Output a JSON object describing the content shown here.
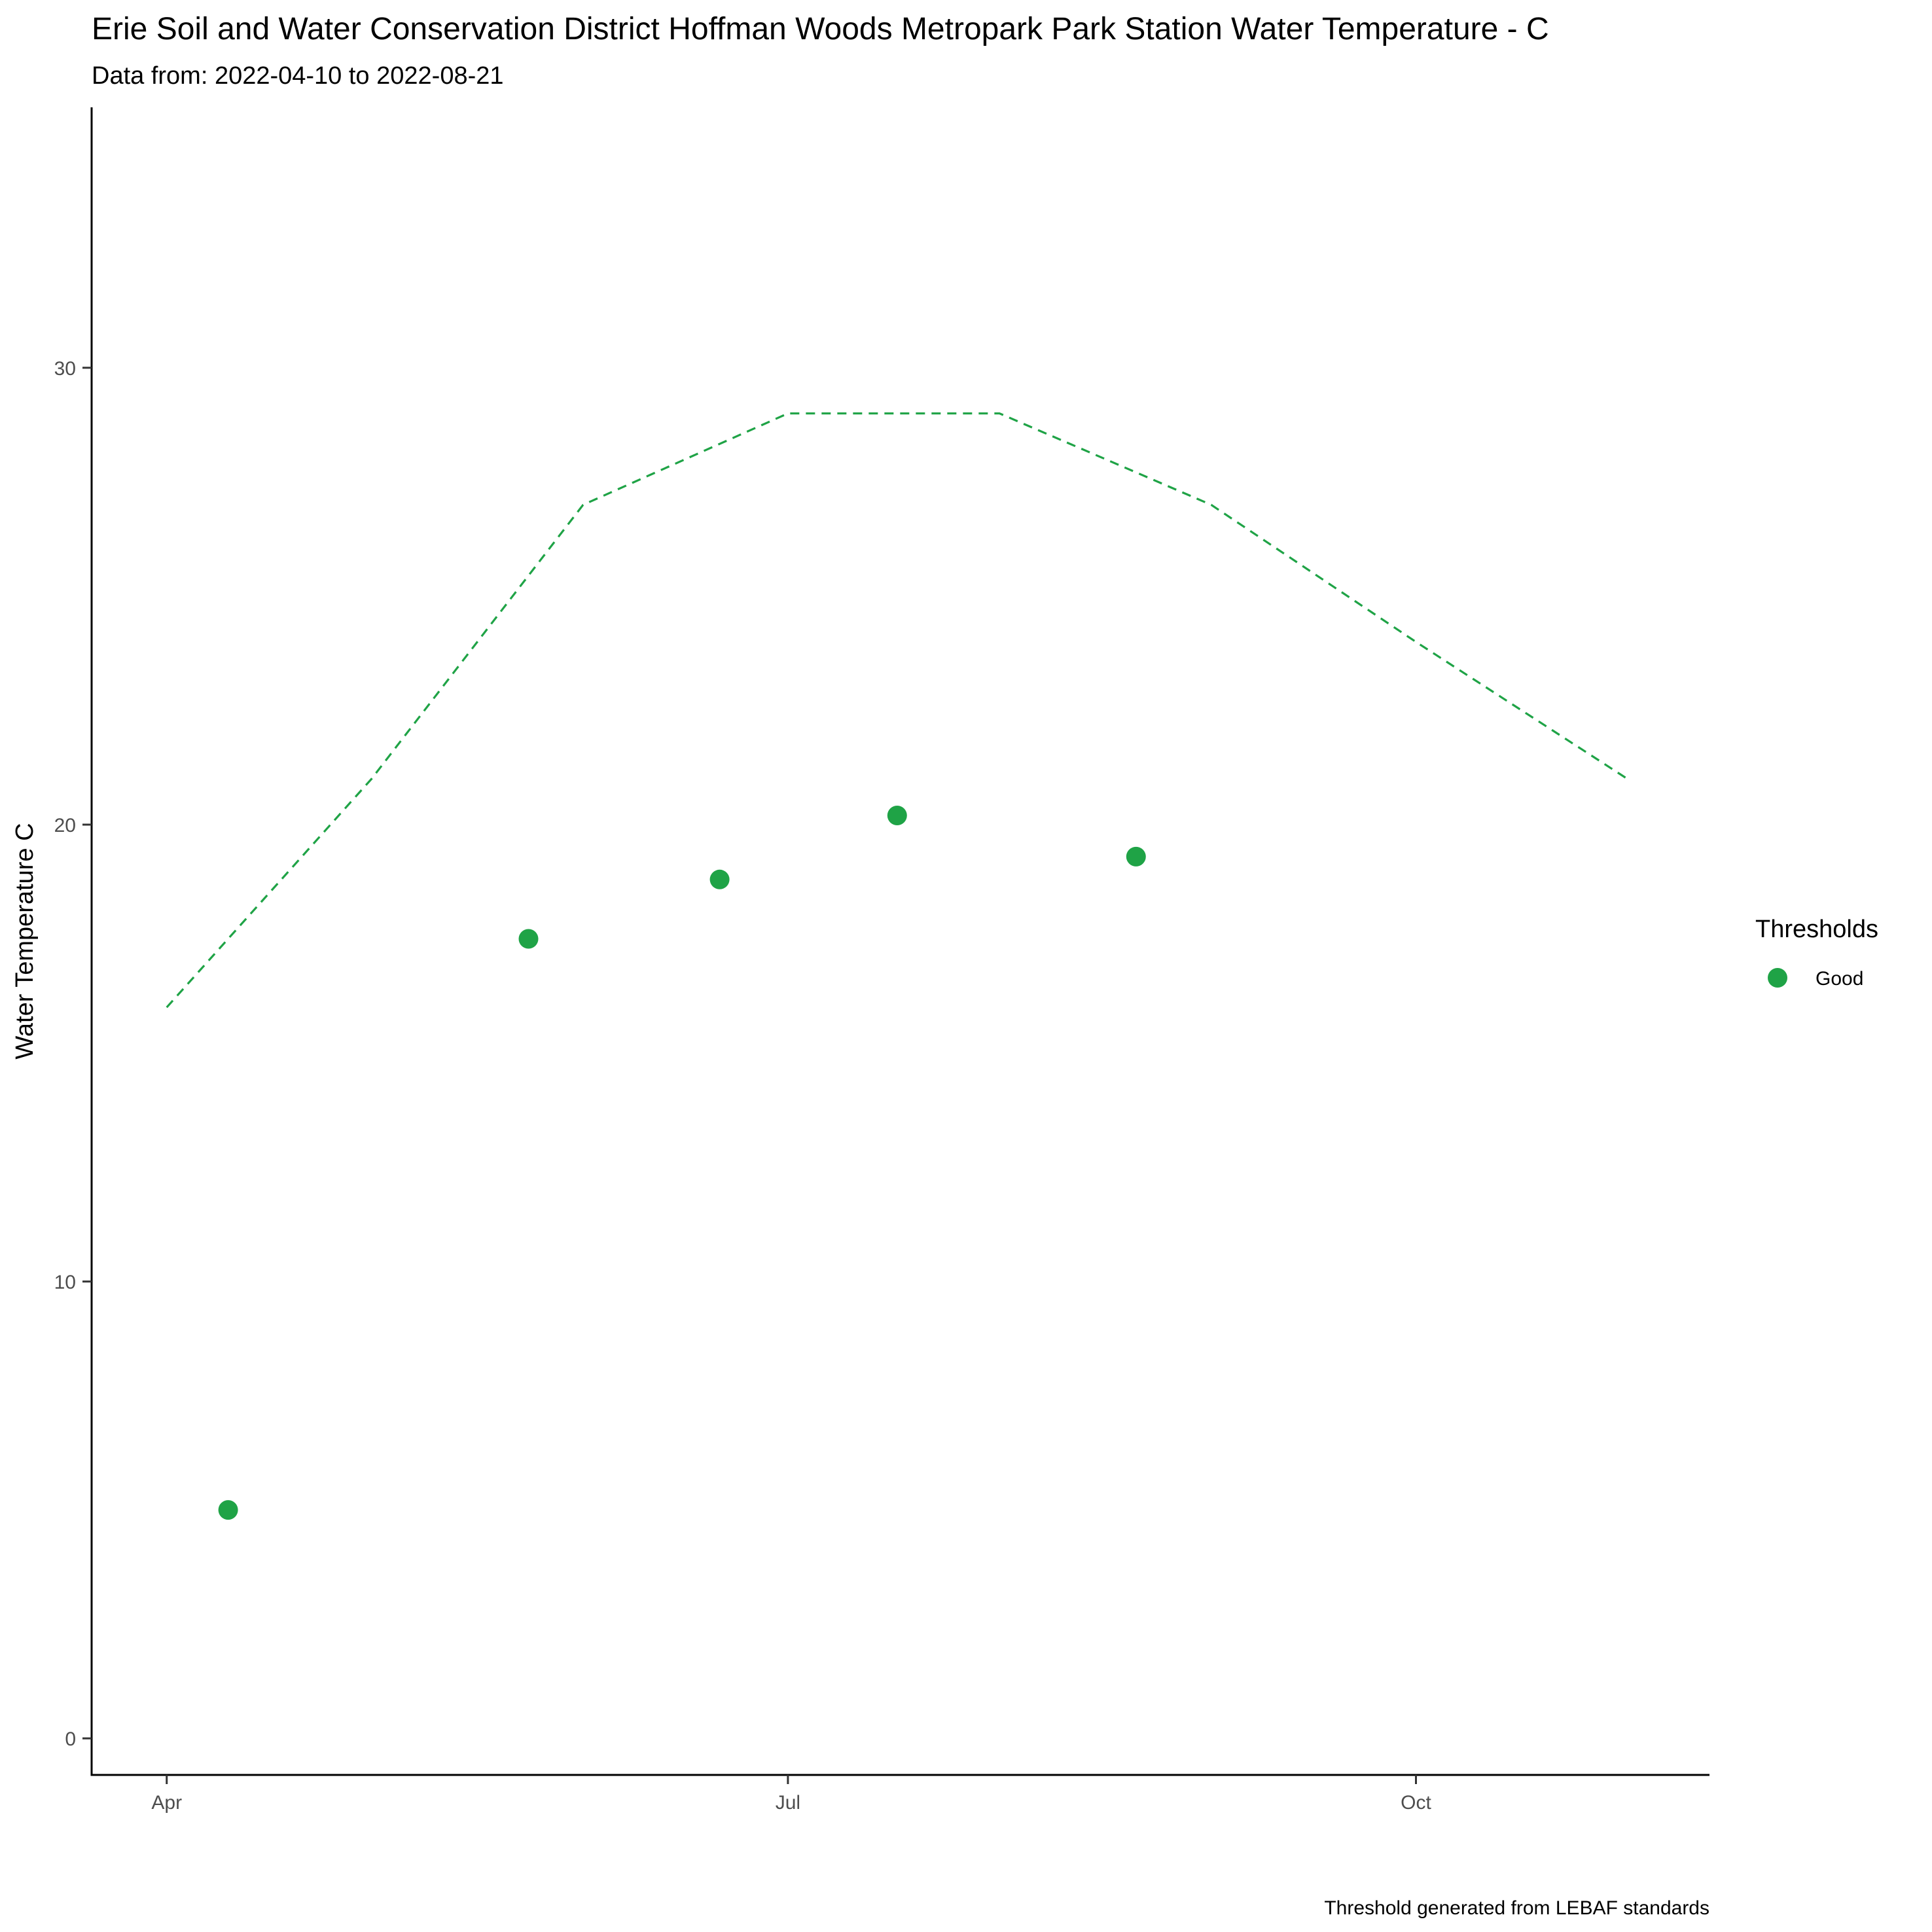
{
  "chart_data": {
    "type": "scatter",
    "title": "Erie Soil and Water Conservation District Hoffman Woods Metropark Park Station Water Temperature - C",
    "subtitle": "Data from: 2022-04-10 to 2022-08-21",
    "xlabel": "",
    "ylabel": "Water Temperature C",
    "caption": "Threshold generated from LEBAF standards",
    "x_ticks": [
      {
        "label": "Apr",
        "date": "2022-04-01"
      },
      {
        "label": "Jul",
        "date": "2022-07-01"
      },
      {
        "label": "Oct",
        "date": "2022-10-01"
      }
    ],
    "y_ticks": [
      0,
      10,
      20,
      30
    ],
    "xlim": [
      "2022-03-21",
      "2022-11-13"
    ],
    "ylim": [
      -0.8,
      35.7
    ],
    "grid": false,
    "legend": {
      "title": "Thresholds",
      "position": "right",
      "entries": [
        {
          "label": "Good",
          "color": "#1fa346"
        }
      ]
    },
    "series": [
      {
        "name": "Good",
        "kind": "points",
        "color": "#1fa346",
        "points": [
          {
            "x": "2022-04-10",
            "y": 5.0
          },
          {
            "x": "2022-05-24",
            "y": 17.5
          },
          {
            "x": "2022-06-21",
            "y": 18.8
          },
          {
            "x": "2022-07-17",
            "y": 20.2
          },
          {
            "x": "2022-08-21",
            "y": 19.3
          }
        ]
      },
      {
        "kind": "dashed-line",
        "color": "#1fa346",
        "points": [
          {
            "x": "2022-04-01",
            "y": 16.0
          },
          {
            "x": "2022-05-01",
            "y": 21.0
          },
          {
            "x": "2022-06-01",
            "y": 27.0
          },
          {
            "x": "2022-07-01",
            "y": 29.0
          },
          {
            "x": "2022-08-01",
            "y": 29.0
          },
          {
            "x": "2022-09-01",
            "y": 27.0
          },
          {
            "x": "2022-10-01",
            "y": 24.0
          },
          {
            "x": "2022-11-01",
            "y": 21.0
          }
        ]
      }
    ]
  }
}
